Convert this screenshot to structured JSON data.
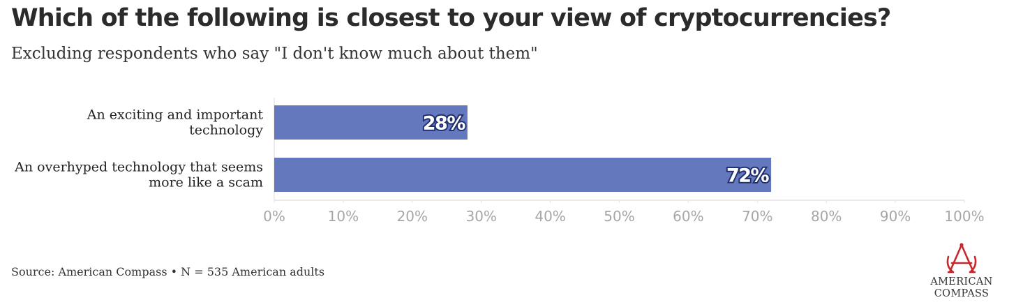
{
  "title": "Which of the following is closest to your view of cryptocurrencies?",
  "subtitle": "Excluding respondents who say \"I don't know much about them\"",
  "footer": "Source: American Compass • N = 535 American adults",
  "logo": {
    "line1": "AMERICAN",
    "line2": "COMPASS",
    "icon": "compass-a-icon"
  },
  "colors": {
    "bar": "#6479bd",
    "axis_text": "#a6a6a6",
    "logo_red": "#c8282d"
  },
  "chart_data": {
    "type": "bar",
    "orientation": "horizontal",
    "categories": [
      [
        "An exciting and important",
        "technology"
      ],
      [
        "An overhyped technology that seems",
        "more like a scam"
      ]
    ],
    "values": [
      28,
      72
    ],
    "value_labels": [
      "28%",
      "72%"
    ],
    "xlim": [
      0,
      100
    ],
    "xticks": [
      0,
      10,
      20,
      30,
      40,
      50,
      60,
      70,
      80,
      90,
      100
    ],
    "xtick_labels": [
      "0%",
      "10%",
      "20%",
      "30%",
      "40%",
      "50%",
      "60%",
      "70%",
      "80%",
      "90%",
      "100%"
    ],
    "grid": false
  }
}
